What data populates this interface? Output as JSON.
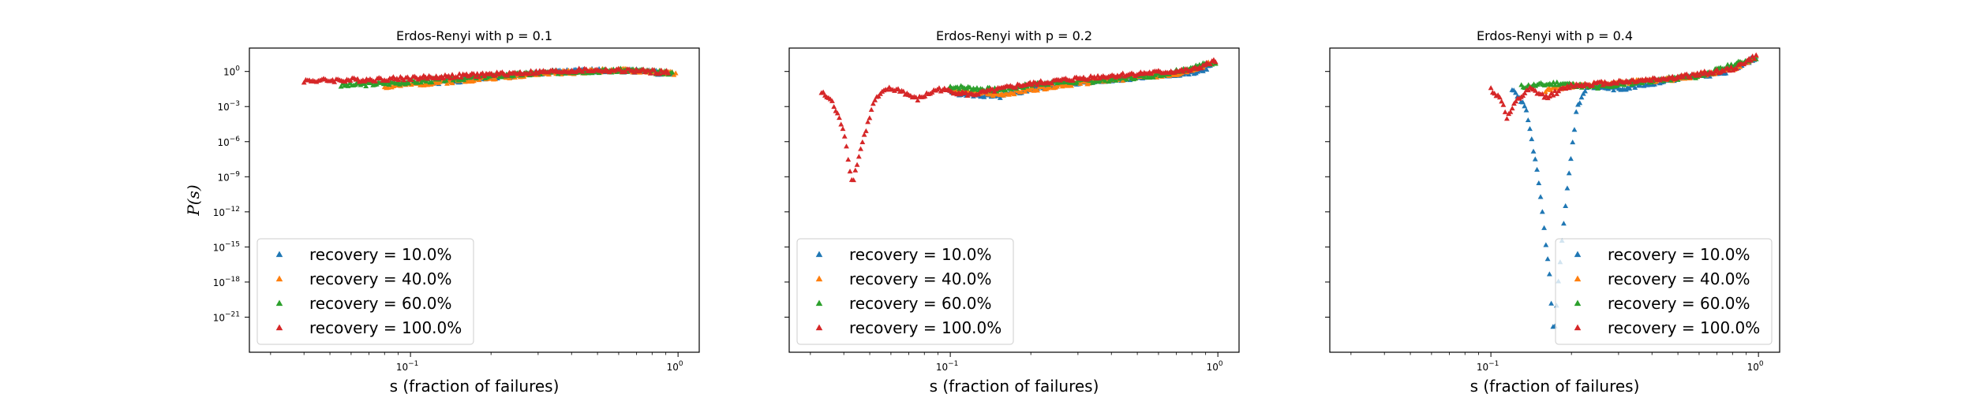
{
  "chart_data": [
    {
      "type": "scatter",
      "title": "Erdos-Renyi with p = 0.1",
      "xlabel": "s (fraction of failures)",
      "ylabel": "P(s)",
      "xscale": "log",
      "yscale": "log",
      "xlim": [
        0.025,
        1.2
      ],
      "ylim": [
        1e-24,
        100.0
      ],
      "xticks": [
        {
          "base": "10",
          "exp": "−1",
          "value": 0.1
        },
        {
          "base": "10",
          "exp": "0",
          "value": 1
        }
      ],
      "yticks": [
        {
          "base": "10",
          "exp": "0",
          "value": 0
        },
        {
          "base": "10",
          "exp": "−3",
          "value": -3
        },
        {
          "base": "10",
          "exp": "−6",
          "value": -6
        },
        {
          "base": "10",
          "exp": "−9",
          "value": -9
        },
        {
          "base": "10",
          "exp": "−12",
          "value": -12
        },
        {
          "base": "10",
          "exp": "−15",
          "value": -15
        },
        {
          "base": "10",
          "exp": "−18",
          "value": -18
        },
        {
          "base": "10",
          "exp": "−21",
          "value": -21
        }
      ],
      "show_ylabel": true,
      "legend": "lower-left",
      "series": [
        {
          "name": "recovery = 10.0%",
          "color": "#1f77b4",
          "curve": [
            [
              0.12,
              -1.0
            ],
            [
              0.2,
              -0.5
            ],
            [
              0.35,
              -0.05
            ],
            [
              0.55,
              0.1
            ],
            [
              0.75,
              0.05
            ],
            [
              0.95,
              -0.3
            ]
          ],
          "seed": 1
        },
        {
          "name": "recovery = 40.0%",
          "color": "#ff7f0e",
          "curve": [
            [
              0.08,
              -1.3
            ],
            [
              0.15,
              -0.8
            ],
            [
              0.3,
              -0.2
            ],
            [
              0.55,
              0.1
            ],
            [
              0.8,
              0.0
            ],
            [
              0.98,
              -0.2
            ]
          ],
          "seed": 2
        },
        {
          "name": "recovery = 60.0%",
          "color": "#2ca02c",
          "curve": [
            [
              0.055,
              -1.2
            ],
            [
              0.1,
              -0.9
            ],
            [
              0.2,
              -0.4
            ],
            [
              0.4,
              0.0
            ],
            [
              0.7,
              0.1
            ],
            [
              0.95,
              -0.2
            ]
          ],
          "seed": 3
        },
        {
          "name": "recovery = 100.0%",
          "color": "#d62728",
          "curve": [
            [
              0.04,
              -0.8
            ],
            [
              0.07,
              -0.7
            ],
            [
              0.12,
              -0.5
            ],
            [
              0.25,
              -0.15
            ],
            [
              0.45,
              0.1
            ],
            [
              0.7,
              0.05
            ],
            [
              0.92,
              -0.1
            ]
          ],
          "seed": 4
        }
      ]
    },
    {
      "type": "scatter",
      "title": "Erdos-Renyi with p = 0.2",
      "xlabel": "s (fraction of failures)",
      "ylabel": "",
      "xscale": "log",
      "yscale": "log",
      "xlim": [
        0.025,
        1.2
      ],
      "ylim": [
        1e-24,
        100.0
      ],
      "xticks": [
        {
          "base": "10",
          "exp": "−1",
          "value": 0.1
        },
        {
          "base": "10",
          "exp": "0",
          "value": 1
        }
      ],
      "yticks": [],
      "show_ylabel": false,
      "legend": "lower-left",
      "series": [
        {
          "name": "recovery = 10.0%",
          "color": "#1f77b4",
          "curve": [
            [
              0.1,
              -1.8
            ],
            [
              0.15,
              -2.2
            ],
            [
              0.22,
              -1.3
            ],
            [
              0.35,
              -0.8
            ],
            [
              0.6,
              -0.4
            ],
            [
              0.85,
              -0.1
            ],
            [
              0.98,
              0.8
            ]
          ],
          "seed": 5
        },
        {
          "name": "recovery = 40.0%",
          "color": "#ff7f0e",
          "curve": [
            [
              0.1,
              -1.6
            ],
            [
              0.15,
              -2.0
            ],
            [
              0.25,
              -1.2
            ],
            [
              0.4,
              -0.7
            ],
            [
              0.7,
              -0.2
            ],
            [
              0.98,
              0.8
            ]
          ],
          "seed": 6
        },
        {
          "name": "recovery = 60.0%",
          "color": "#2ca02c",
          "curve": [
            [
              0.1,
              -1.3
            ],
            [
              0.15,
              -1.6
            ],
            [
              0.22,
              -1.0
            ],
            [
              0.35,
              -0.8
            ],
            [
              0.6,
              -0.3
            ],
            [
              0.98,
              0.8
            ]
          ],
          "seed": 7
        },
        {
          "name": "recovery = 100.0%",
          "color": "#d62728",
          "curve": [
            [
              0.033,
              -1.8
            ],
            [
              0.036,
              -2.5
            ],
            [
              0.04,
              -5.0
            ],
            [
              0.043,
              -9.6
            ],
            [
              0.047,
              -6.0
            ],
            [
              0.052,
              -2.5
            ],
            [
              0.058,
              -1.5
            ],
            [
              0.065,
              -1.6
            ],
            [
              0.075,
              -2.4
            ],
            [
              0.09,
              -1.5
            ],
            [
              0.12,
              -2.0
            ],
            [
              0.18,
              -1.2
            ],
            [
              0.3,
              -0.6
            ],
            [
              0.5,
              -0.2
            ],
            [
              0.8,
              0.1
            ],
            [
              0.98,
              0.9
            ]
          ],
          "seed": 8
        }
      ]
    },
    {
      "type": "scatter",
      "title": "Erdos-Renyi with p = 0.4",
      "xlabel": "s (fraction of failures)",
      "ylabel": "",
      "xscale": "log",
      "yscale": "log",
      "xlim": [
        0.025,
        1.2
      ],
      "ylim": [
        1e-24,
        100.0
      ],
      "xticks": [
        {
          "base": "10",
          "exp": "−1",
          "value": 0.1
        },
        {
          "base": "10",
          "exp": "0",
          "value": 1
        }
      ],
      "yticks": [],
      "show_ylabel": false,
      "legend": "lower-right",
      "series": [
        {
          "name": "recovery = 10.0%",
          "color": "#1f77b4",
          "curve": [
            [
              0.12,
              -1.5
            ],
            [
              0.135,
              -3.0
            ],
            [
              0.15,
              -9.0
            ],
            [
              0.165,
              -17.0
            ],
            [
              0.172,
              -23.0
            ],
            [
              0.18,
              -17.0
            ],
            [
              0.195,
              -9.0
            ],
            [
              0.21,
              -3.0
            ],
            [
              0.23,
              -1.2
            ],
            [
              0.3,
              -1.5
            ],
            [
              0.5,
              -0.6
            ],
            [
              0.75,
              -0.1
            ],
            [
              0.98,
              1.2
            ]
          ],
          "seed": 9
        },
        {
          "name": "recovery = 40.0%",
          "color": "#ff7f0e",
          "curve": [
            [
              0.16,
              -1.6
            ],
            [
              0.2,
              -1.2
            ],
            [
              0.3,
              -1.0
            ],
            [
              0.5,
              -0.6
            ],
            [
              0.8,
              0.2
            ],
            [
              0.98,
              1.3
            ]
          ],
          "seed": 10
        },
        {
          "name": "recovery = 60.0%",
          "color": "#2ca02c",
          "curve": [
            [
              0.13,
              -1.3
            ],
            [
              0.18,
              -1.0
            ],
            [
              0.25,
              -1.4
            ],
            [
              0.35,
              -0.9
            ],
            [
              0.6,
              -0.4
            ],
            [
              0.98,
              1.2
            ]
          ],
          "seed": 11
        },
        {
          "name": "recovery = 100.0%",
          "color": "#d62728",
          "curve": [
            [
              0.1,
              -1.5
            ],
            [
              0.11,
              -2.5
            ],
            [
              0.115,
              -4.0
            ],
            [
              0.125,
              -2.5
            ],
            [
              0.14,
              -1.5
            ],
            [
              0.16,
              -2.2
            ],
            [
              0.2,
              -1.2
            ],
            [
              0.3,
              -0.9
            ],
            [
              0.5,
              -0.5
            ],
            [
              0.8,
              0.2
            ],
            [
              0.98,
              1.3
            ]
          ],
          "seed": 12
        }
      ]
    }
  ]
}
